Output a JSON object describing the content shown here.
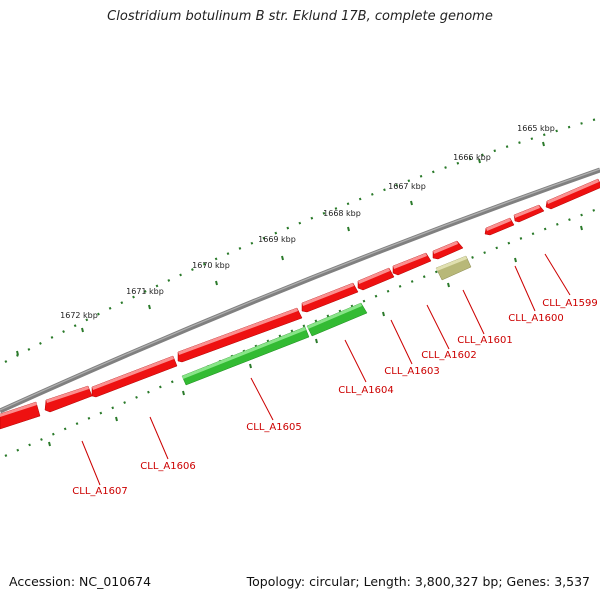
{
  "title": "Clostridium botulinum B str. Eklund 17B, complete genome",
  "footer": {
    "accession": "Accession: NC_010674",
    "summary": "Topology: circular; Length: 3,800,327 bp; Genes: 3,537"
  },
  "colors": {
    "forward_gene": "#ee1111",
    "reverse_gene": "#33bb33",
    "other_gene": "#b8b878",
    "backbone": "#808080",
    "ticks": "#2a7a2a",
    "gene_label": "#cc0000"
  },
  "kbp_labels": [
    "1665 kbp",
    "1666 kbp",
    "1667 kbp",
    "1668 kbp",
    "1669 kbp",
    "1670 kbp",
    "1671 kbp",
    "1672 kbp"
  ],
  "gene_labels": [
    "CLL_A1599",
    "CLL_A1600",
    "CLL_A1601",
    "CLL_A1602",
    "CLL_A1603",
    "CLL_A1604",
    "CLL_A1605",
    "CLL_A1606",
    "CLL_A1607"
  ]
}
